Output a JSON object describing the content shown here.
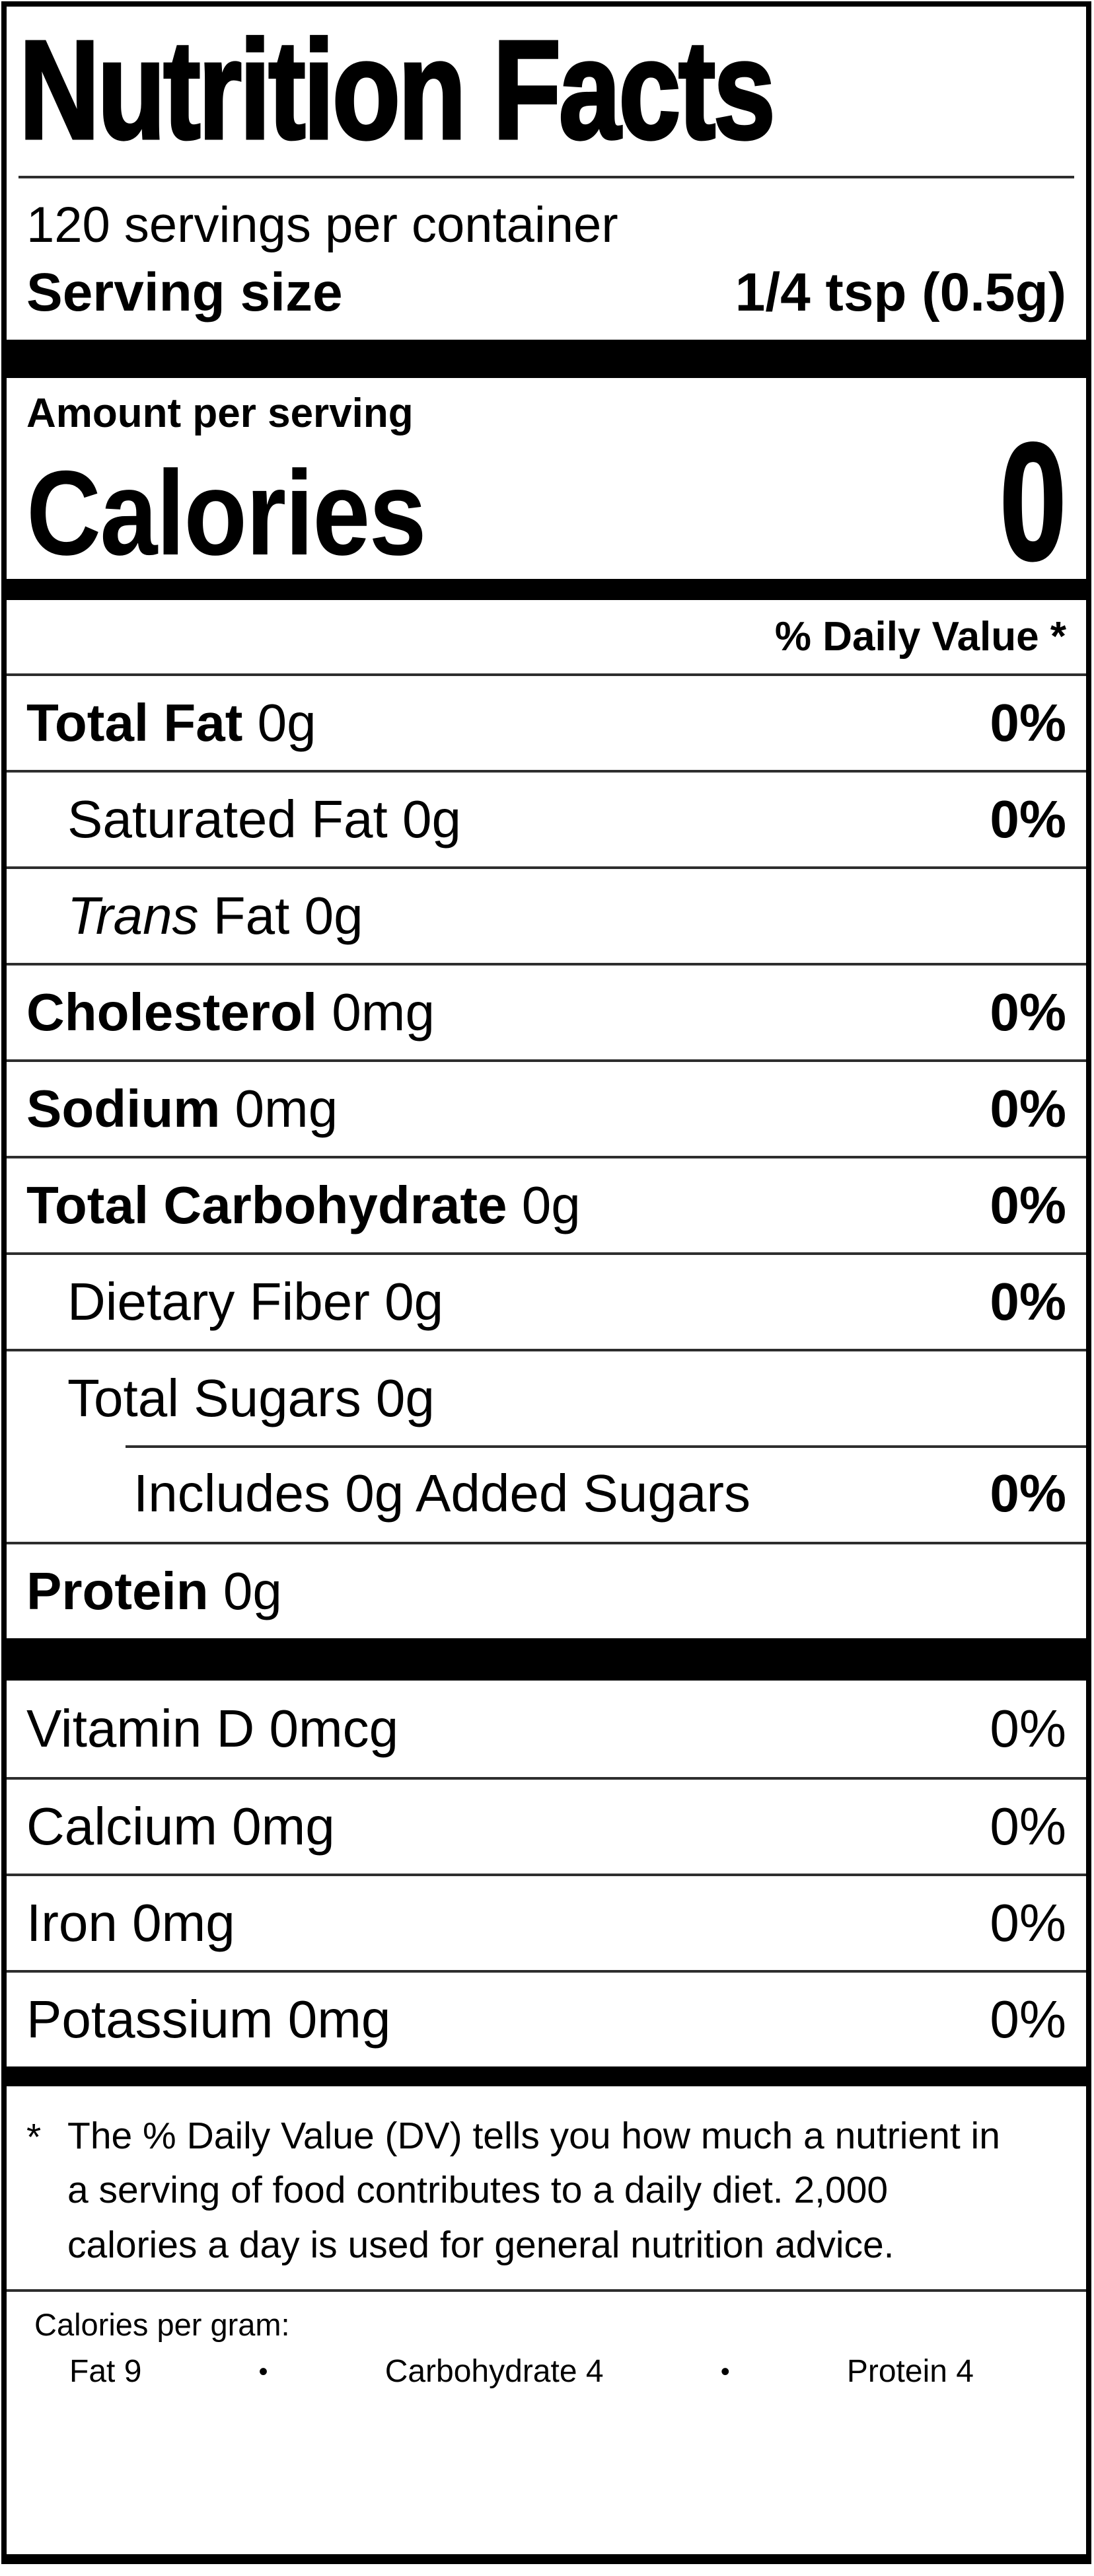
{
  "label": {
    "title": "Nutrition Facts",
    "servings_per_container": "120 servings per container",
    "serving_size_label": "Serving size",
    "serving_size_value": "1/4 tsp (0.5g)",
    "amount_per_serving": "Amount per serving",
    "calories_label": "Calories",
    "calories_value": "0",
    "daily_value_header": "% Daily Value *",
    "nutrient_rows": [
      {
        "bold": "Total Fat",
        "rest": " 0g",
        "dv": "0%"
      },
      {
        "rest": "Saturated Fat 0g",
        "dv": "0%"
      },
      {
        "italic": "Trans",
        "rest": " Fat 0g",
        "dv": ""
      },
      {
        "bold": "Cholesterol",
        "rest": " 0mg",
        "dv": "0%"
      },
      {
        "bold": "Sodium",
        "rest": " 0mg",
        "dv": "0%"
      },
      {
        "bold": "Total Carbohydrate",
        "rest": " 0g",
        "dv": "0%"
      },
      {
        "rest": "Dietary Fiber 0g",
        "dv": "0%"
      },
      {
        "rest": "Total Sugars 0g",
        "dv": ""
      },
      {
        "rest": "Includes 0g Added Sugars",
        "dv": "0%"
      },
      {
        "bold": "Protein",
        "rest": " 0g",
        "dv": ""
      }
    ],
    "vitamin_rows": [
      {
        "text": "Vitamin D 0mcg",
        "dv": "0%"
      },
      {
        "text": "Calcium 0mg",
        "dv": "0%"
      },
      {
        "text": "Iron 0mg",
        "dv": "0%"
      },
      {
        "text": "Potassium 0mg",
        "dv": "0%"
      }
    ],
    "footnote_marker": "*",
    "footnote_text": "The % Daily Value (DV) tells you how much a nutrient in a serving of food contributes to a daily diet. 2,000 calories a day is used for general nutrition advice.",
    "calories_per_gram_label": "Calories per gram:",
    "calories_per_gram": {
      "fat": "Fat 9",
      "bullet1": "•",
      "carbohydrate": "Carbohydrate 4",
      "bullet2": "•",
      "protein": "Protein 4"
    }
  }
}
